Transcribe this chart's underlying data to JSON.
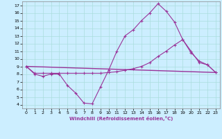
{
  "xlabel": "Windchill (Refroidissement éolien,°C)",
  "bg_color": "#cceeff",
  "line_color": "#993399",
  "xlim": [
    -0.5,
    23.5
  ],
  "ylim": [
    3.5,
    17.5
  ],
  "yticks": [
    4,
    5,
    6,
    7,
    8,
    9,
    10,
    11,
    12,
    13,
    14,
    15,
    16,
    17
  ],
  "xticks": [
    0,
    1,
    2,
    3,
    4,
    5,
    6,
    7,
    8,
    9,
    10,
    11,
    12,
    13,
    14,
    15,
    16,
    17,
    18,
    19,
    20,
    21,
    22,
    23
  ],
  "series1_x": [
    0,
    1,
    2,
    3,
    4,
    5,
    6,
    7,
    8,
    9,
    10,
    11,
    12,
    13,
    14,
    15,
    16,
    17,
    18,
    19,
    20,
    21,
    22,
    23
  ],
  "series1_y": [
    9,
    8,
    7.7,
    8,
    8,
    6.5,
    5.5,
    4.2,
    4.1,
    6.3,
    8.5,
    11,
    13,
    13.8,
    15,
    16,
    17.2,
    16.2,
    14.8,
    12.5,
    11,
    9.5,
    9.2,
    8.2
  ],
  "series2_x": [
    0,
    1,
    2,
    3,
    4,
    5,
    6,
    7,
    8,
    9,
    10,
    11,
    12,
    13,
    14,
    15,
    16,
    17,
    18,
    19,
    20,
    21,
    22,
    23
  ],
  "series2_y": [
    9,
    8.1,
    8.1,
    8.1,
    8.1,
    8.1,
    8.1,
    8.1,
    8.1,
    8.1,
    8.2,
    8.3,
    8.5,
    8.7,
    9.0,
    9.5,
    10.3,
    11.0,
    11.8,
    12.5,
    10.8,
    9.7,
    9.2,
    8.2
  ],
  "series3_x": [
    0,
    23
  ],
  "series3_y": [
    9,
    8.2
  ],
  "grid_color": "#aadddd",
  "marker": "+"
}
